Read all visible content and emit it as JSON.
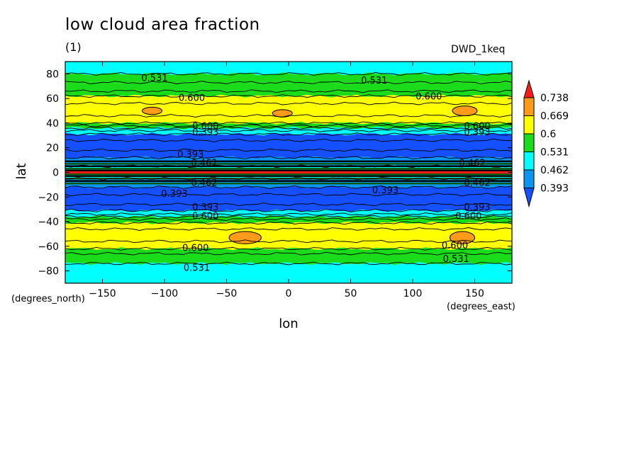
{
  "header": {
    "title": "low cloud area fraction",
    "subtitle": "(1)",
    "run_label": "DWD_1keq"
  },
  "units": {
    "lat": "(degrees_north)",
    "lon": "(degrees_east)"
  },
  "chart_data": {
    "type": "heatmap",
    "title": "low cloud area fraction",
    "xlabel": "lon",
    "ylabel": "lat",
    "xlim": [
      -180,
      180
    ],
    "ylim": [
      -90,
      90
    ],
    "xticks": [
      -150,
      -100,
      -50,
      0,
      50,
      100,
      150
    ],
    "yticks": [
      80,
      60,
      40,
      20,
      0,
      -20,
      -40,
      -60,
      -80
    ],
    "colorbar": {
      "levels": [
        "0.738",
        "0.669",
        "0.6",
        "0.531",
        "0.462",
        "0.393"
      ],
      "colors": [
        "#ff1a1a",
        "#ff9a1a",
        "#ffff00",
        "#1adc1a",
        "#00ffff",
        "#0a96f0",
        "#1450ff"
      ],
      "extend": "both"
    },
    "bands": [
      {
        "lat_from": 90,
        "lat_to": 80,
        "color": "#00ffff"
      },
      {
        "lat_from": 80,
        "lat_to": 73,
        "color": "#1adc1a"
      },
      {
        "lat_from": 73,
        "lat_to": 62,
        "color": "#1adc1a"
      },
      {
        "lat_from": 62,
        "lat_to": 40,
        "color": "#ffff00"
      },
      {
        "lat_from": 40,
        "lat_to": 36,
        "color": "#1adc1a"
      },
      {
        "lat_from": 36,
        "lat_to": 31,
        "color": "#00ffff"
      },
      {
        "lat_from": 31,
        "lat_to": 12,
        "color": "#1450ff"
      },
      {
        "lat_from": 12,
        "lat_to": 5,
        "color": "#0a96f0"
      },
      {
        "lat_from": 5,
        "lat_to": -5,
        "color": "#00ffff"
      },
      {
        "lat_from": -5,
        "lat_to": -12,
        "color": "#0a96f0"
      },
      {
        "lat_from": -12,
        "lat_to": -31,
        "color": "#1450ff"
      },
      {
        "lat_from": -31,
        "lat_to": -36,
        "color": "#00ffff"
      },
      {
        "lat_from": -36,
        "lat_to": -41,
        "color": "#1adc1a"
      },
      {
        "lat_from": -41,
        "lat_to": -62,
        "color": "#ffff00"
      },
      {
        "lat_from": -62,
        "lat_to": -74,
        "color": "#1adc1a"
      },
      {
        "lat_from": -74,
        "lat_to": -90,
        "color": "#00ffff"
      }
    ],
    "equator_line": {
      "lat": 0,
      "color": "#ff1a1a"
    },
    "patches": [
      {
        "lon": -110,
        "lat": 50,
        "rlon": 8,
        "rlat": 3,
        "color": "#ff9a1a"
      },
      {
        "lon": -5,
        "lat": 48,
        "rlon": 8,
        "rlat": 3,
        "color": "#ff9a1a"
      },
      {
        "lon": 142,
        "lat": 50,
        "rlon": 10,
        "rlat": 4,
        "color": "#ff9a1a"
      },
      {
        "lon": -35,
        "lat": -53,
        "rlon": 13,
        "rlat": 5,
        "color": "#ff9a1a"
      },
      {
        "lon": 140,
        "lat": -53,
        "rlon": 10,
        "rlat": 5,
        "color": "#ff9a1a"
      }
    ],
    "contour_labels": [
      {
        "lon": -108,
        "lat": 77,
        "text": "0.531"
      },
      {
        "lon": 69,
        "lat": 75,
        "text": "0.531"
      },
      {
        "lon": -78,
        "lat": 61,
        "text": "0.600"
      },
      {
        "lon": 113,
        "lat": 62,
        "text": "0.600"
      },
      {
        "lon": -67,
        "lat": 38,
        "text": "0.600"
      },
      {
        "lon": 152,
        "lat": 38,
        "text": "0.600"
      },
      {
        "lon": -67,
        "lat": 33,
        "text": "0.393"
      },
      {
        "lon": 152,
        "lat": 33,
        "text": "0.393"
      },
      {
        "lon": -79,
        "lat": 15,
        "text": "0.393"
      },
      {
        "lon": -68,
        "lat": 8,
        "text": "0.462"
      },
      {
        "lon": 148,
        "lat": 8,
        "text": "0.462"
      },
      {
        "lon": -68,
        "lat": -8,
        "text": "0.462"
      },
      {
        "lon": 152,
        "lat": -8,
        "text": "0.462"
      },
      {
        "lon": -92,
        "lat": -17,
        "text": "0.393"
      },
      {
        "lon": 78,
        "lat": -14,
        "text": "0.393"
      },
      {
        "lon": -67,
        "lat": -28,
        "text": "0.393"
      },
      {
        "lon": 152,
        "lat": -28,
        "text": "0.393"
      },
      {
        "lon": -67,
        "lat": -35,
        "text": "0.600"
      },
      {
        "lon": 145,
        "lat": -35,
        "text": "0.600"
      },
      {
        "lon": -75,
        "lat": -61,
        "text": "0.600"
      },
      {
        "lon": 134,
        "lat": -59,
        "text": "0.600"
      },
      {
        "lon": -74,
        "lat": -77,
        "text": "0.531"
      },
      {
        "lon": 135,
        "lat": -70,
        "text": "0.531"
      }
    ],
    "grid": false
  }
}
